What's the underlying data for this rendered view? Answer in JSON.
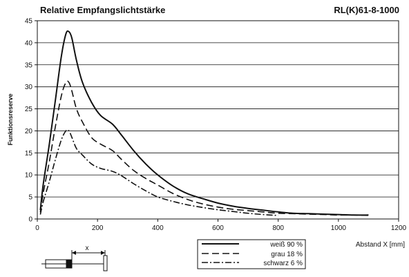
{
  "chart_data": {
    "type": "line",
    "title": "Relative Empfangslichtstärke",
    "subtitle": "RL(K)61-8-1000",
    "xlabel": "Abstand X [mm]",
    "ylabel": "Funktionsreserve",
    "xlim": [
      0,
      1200
    ],
    "ylim": [
      0,
      45
    ],
    "xticks": [
      0,
      200,
      400,
      600,
      800,
      1000,
      1200
    ],
    "yticks": [
      0,
      5,
      10,
      15,
      20,
      25,
      30,
      35,
      40,
      45
    ],
    "grid": "horizontal",
    "legend_position": "bottom-center",
    "diagram_label": "x",
    "series": [
      {
        "name": "weiß 90 %",
        "dash": "solid",
        "x": [
          10,
          20,
          40,
          60,
          80,
          95,
          105,
          115,
          130,
          150,
          180,
          210,
          250,
          280,
          320,
          360,
          400,
          450,
          500,
          550,
          600,
          650,
          700,
          750,
          800,
          850,
          900,
          950,
          1000,
          1050,
          1100
        ],
        "y": [
          2,
          8,
          17,
          27,
          37,
          42,
          42.5,
          41,
          36,
          31,
          26.5,
          23.5,
          21.5,
          19,
          15.5,
          12.5,
          10,
          7.5,
          5.7,
          4.6,
          3.6,
          2.9,
          2.4,
          2.0,
          1.6,
          1.3,
          1.2,
          1.1,
          1.0,
          0.9,
          0.9
        ]
      },
      {
        "name": "grau 18 %",
        "dash": "dashed",
        "x": [
          10,
          20,
          40,
          60,
          80,
          95,
          105,
          115,
          130,
          150,
          180,
          210,
          250,
          280,
          320,
          360,
          400,
          450,
          500,
          550,
          600,
          650,
          700,
          750,
          800,
          850,
          900,
          950,
          1000,
          1050,
          1100
        ],
        "y": [
          1.5,
          6,
          13,
          21,
          28,
          31,
          31,
          29,
          25,
          22,
          18.5,
          17,
          15.5,
          13.5,
          11,
          9.2,
          7.7,
          5.8,
          4.4,
          3.4,
          2.7,
          2.2,
          1.9,
          1.6,
          1.3,
          1.2,
          1.1,
          1.0,
          0.9,
          0.9,
          0.8
        ]
      },
      {
        "name": "schwarz 6 %",
        "dash": "dash-dot",
        "x": [
          10,
          20,
          40,
          60,
          80,
          95,
          105,
          115,
          130,
          150,
          180,
          210,
          250,
          280,
          320,
          360,
          400,
          450,
          500,
          550,
          600,
          650,
          700,
          750,
          800
        ],
        "y": [
          1,
          4,
          8.5,
          13.5,
          18,
          20,
          20,
          18.5,
          16,
          14.5,
          12.5,
          11.5,
          10.8,
          9.8,
          8,
          6.4,
          5,
          4,
          3.2,
          2.6,
          2.1,
          1.7,
          1.3,
          1.0,
          0.8
        ]
      }
    ]
  }
}
